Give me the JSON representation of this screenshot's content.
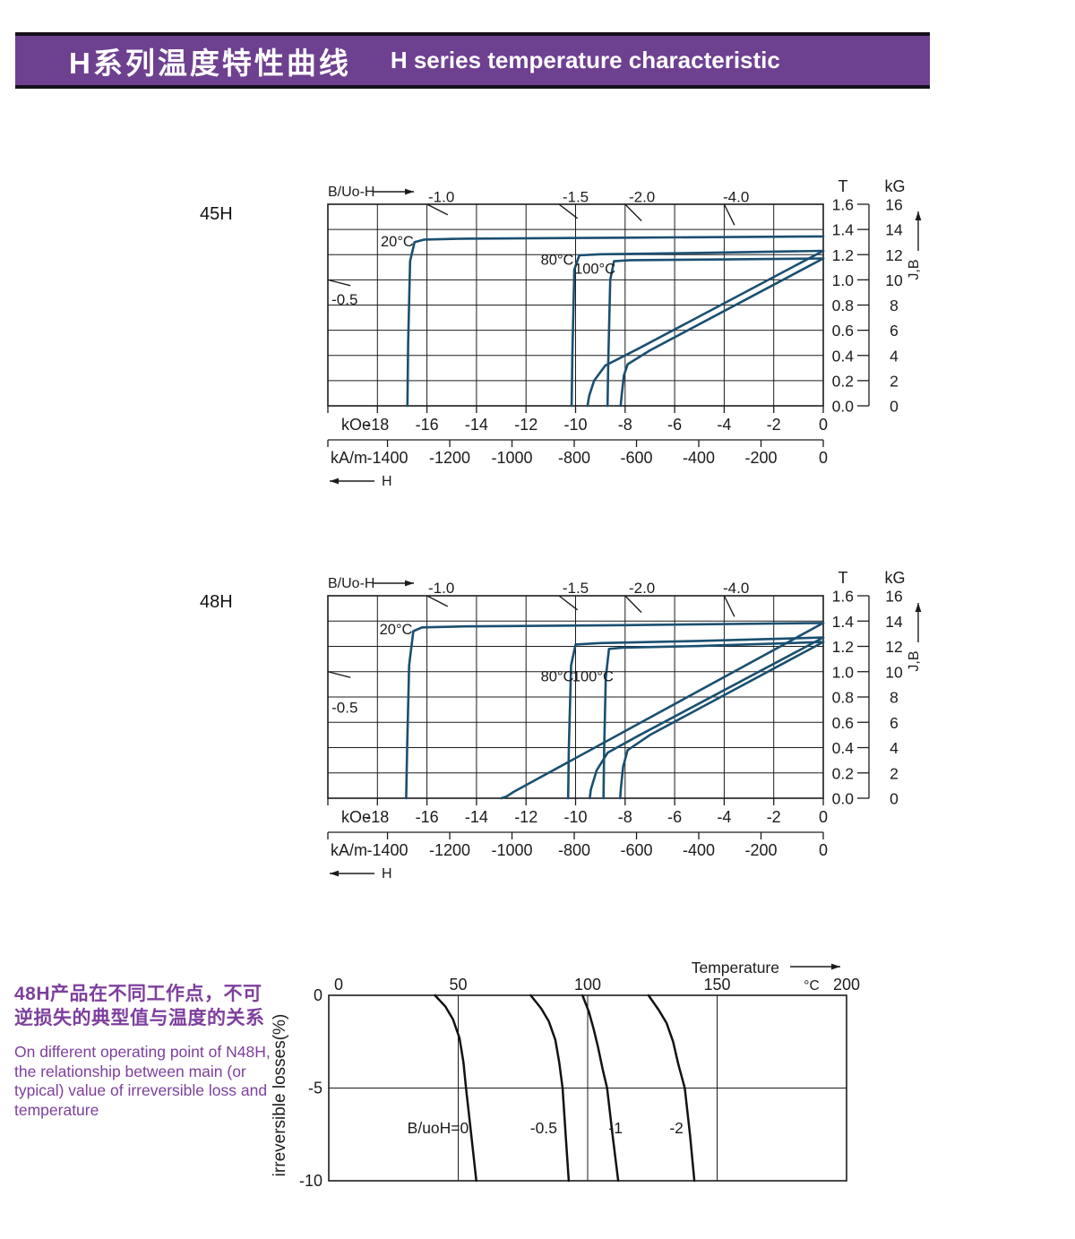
{
  "header": {
    "title_zh": "H系列温度特性曲线",
    "title_en": "H  series temperature characteristic",
    "bg_color": "#6e4090",
    "text_color": "#ffffff"
  },
  "note": {
    "color": "#7d3f9d",
    "zh_lines": [
      "48H产品在不同工作点，不可",
      "逆损失的典型值与温度的关系"
    ],
    "en_lines": [
      "On different operating point of N48H,",
      "the relationship between main (or",
      "typical) value of irreversible loss and",
      "temperature"
    ]
  },
  "chart_data": [
    {
      "id": "demag-45H",
      "type": "line",
      "grade_label": "45H",
      "top_axis_label": "B/Uo-H",
      "curve_color": "#1a4f70",
      "x_axis": {
        "unit_primary": "kOe",
        "range_kOe": [
          -20,
          0
        ],
        "grid_step_kOe": 2,
        "ticks_kOe": [
          -18,
          -16,
          -14,
          -12,
          -10,
          -8,
          -6,
          -4,
          -2,
          0
        ],
        "unit_secondary": "kA/m",
        "ticks_kAm": [
          -1400,
          -1200,
          -1000,
          -800,
          -600,
          -400,
          -200,
          0
        ],
        "arrow_label": "H"
      },
      "y_axis": {
        "unit_left": "T",
        "unit_right": "kG",
        "range_T": [
          0,
          1.6
        ],
        "grid_step_T": 0.2,
        "ticks_T": [
          "1.6",
          "1.4",
          "1.2",
          "1.0",
          "0.8",
          "0.6",
          "0.4",
          "0.2",
          "0.0"
        ],
        "ticks_kG": [
          "16",
          "14",
          "12",
          "10",
          "8",
          "6",
          "4",
          "2",
          "0"
        ],
        "axis_arrow_label": "J,B"
      },
      "load_lines": [
        {
          "label": "-0.5",
          "exit_at": [
            -20,
            1.0
          ],
          "side": "left",
          "label_at": [
            -19.85,
            0.84
          ]
        },
        {
          "label": "-1.0",
          "exit_at": [
            -16,
            1.6
          ],
          "side": "top",
          "label_at": [
            -15.42,
            1.655
          ]
        },
        {
          "label": "-1.5",
          "exit_at": [
            -10.67,
            1.6
          ],
          "side": "top",
          "label_at": [
            -10.0,
            1.655
          ]
        },
        {
          "label": "-2.0",
          "exit_at": [
            -8,
            1.6
          ],
          "side": "top",
          "label_at": [
            -7.32,
            1.655
          ]
        },
        {
          "label": "-4.0",
          "exit_at": [
            -4,
            1.6
          ],
          "side": "top",
          "label_at": [
            -3.52,
            1.655
          ]
        }
      ],
      "series": [
        {
          "name": "J-H 20C",
          "label": "20°C",
          "label_at": [
            -17.2,
            1.3
          ],
          "points": [
            [
              0,
              1.345
            ],
            [
              -8,
              1.335
            ],
            [
              -14.5,
              1.327
            ],
            [
              -16.1,
              1.32
            ],
            [
              -16.5,
              1.3
            ],
            [
              -16.68,
              1.15
            ],
            [
              -16.76,
              0.5
            ],
            [
              -16.79,
              0
            ]
          ]
        },
        {
          "name": "J-H 80C",
          "label": "80°C",
          "label_at": [
            -10.74,
            1.155
          ],
          "points": [
            [
              0,
              1.23
            ],
            [
              -5,
              1.214
            ],
            [
              -9,
              1.203
            ],
            [
              -9.85,
              1.195
            ],
            [
              -10.05,
              1.08
            ],
            [
              -10.13,
              0.4
            ],
            [
              -10.16,
              0
            ]
          ]
        },
        {
          "name": "B-H 80C",
          "points": [
            [
              0,
              1.23
            ],
            [
              -7.5,
              0.45
            ],
            [
              -8.8,
              0.32
            ],
            [
              -9.25,
              0.2
            ],
            [
              -9.45,
              0.08
            ],
            [
              -9.52,
              0
            ]
          ]
        },
        {
          "name": "J-H 100C",
          "label": "100°C",
          "label_at": [
            -9.22,
            1.085
          ],
          "points": [
            [
              0,
              1.17
            ],
            [
              -4,
              1.162
            ],
            [
              -7.8,
              1.156
            ],
            [
              -8.45,
              1.148
            ],
            [
              -8.6,
              1.0
            ],
            [
              -8.68,
              0.35
            ],
            [
              -8.71,
              0
            ]
          ]
        },
        {
          "name": "B-H 100C",
          "points": [
            [
              0,
              1.17
            ],
            [
              -7,
              0.44
            ],
            [
              -7.9,
              0.33
            ],
            [
              -8.05,
              0.24
            ],
            [
              -8.14,
              0.08
            ],
            [
              -8.18,
              0
            ]
          ]
        }
      ]
    },
    {
      "id": "demag-48H",
      "type": "line",
      "grade_label": "48H",
      "top_axis_label": "B/Uo-H",
      "curve_color": "#1a4f70",
      "x_axis": {
        "unit_primary": "kOe",
        "range_kOe": [
          -20,
          0
        ],
        "grid_step_kOe": 2,
        "ticks_kOe": [
          -18,
          -16,
          -14,
          -12,
          -10,
          -8,
          -6,
          -4,
          -2,
          0
        ],
        "unit_secondary": "kA/m",
        "ticks_kAm": [
          -1400,
          -1200,
          -1000,
          -800,
          -600,
          -400,
          -200,
          0
        ],
        "arrow_label": "H"
      },
      "y_axis": {
        "unit_left": "T",
        "unit_right": "kG",
        "range_T": [
          0,
          1.6
        ],
        "grid_step_T": 0.2,
        "ticks_T": [
          "1.6",
          "1.4",
          "1.2",
          "1.0",
          "0.8",
          "0.6",
          "0.4",
          "0.2",
          "0.0"
        ],
        "ticks_kG": [
          "16",
          "14",
          "12",
          "10",
          "8",
          "6",
          "4",
          "2",
          "0"
        ],
        "axis_arrow_label": "J,B"
      },
      "load_lines": [
        {
          "label": "-0.5",
          "exit_at": [
            -20,
            1.0
          ],
          "side": "left",
          "label_at": [
            -19.85,
            0.71
          ]
        },
        {
          "label": "-1.0",
          "exit_at": [
            -16,
            1.6
          ],
          "side": "top",
          "label_at": [
            -15.42,
            1.655
          ]
        },
        {
          "label": "-1.5",
          "exit_at": [
            -10.67,
            1.6
          ],
          "side": "top",
          "label_at": [
            -10.0,
            1.655
          ]
        },
        {
          "label": "-2.0",
          "exit_at": [
            -8,
            1.6
          ],
          "side": "top",
          "label_at": [
            -7.32,
            1.655
          ]
        },
        {
          "label": "-4.0",
          "exit_at": [
            -4,
            1.6
          ],
          "side": "top",
          "label_at": [
            -3.52,
            1.655
          ]
        }
      ],
      "series": [
        {
          "name": "J-H 20C",
          "label": "20°C",
          "label_at": [
            -17.25,
            1.33
          ],
          "points": [
            [
              0,
              1.385
            ],
            [
              -8,
              1.368
            ],
            [
              -14.5,
              1.358
            ],
            [
              -16.2,
              1.35
            ],
            [
              -16.55,
              1.32
            ],
            [
              -16.72,
              1.05
            ],
            [
              -16.8,
              0.4
            ],
            [
              -16.84,
              0
            ]
          ]
        },
        {
          "name": "B-H 20C",
          "points": [
            [
              0,
              1.385
            ],
            [
              -12.5,
              0.05
            ],
            [
              -12.8,
              0.012
            ],
            [
              -13.0,
              0
            ]
          ]
        },
        {
          "name": "J-H 80C",
          "label": "80°C",
          "label_at": [
            -10.74,
            0.96
          ],
          "points": [
            [
              0,
              1.27
            ],
            [
              -5,
              1.243
            ],
            [
              -9,
              1.226
            ],
            [
              -10.0,
              1.215
            ],
            [
              -10.18,
              1.05
            ],
            [
              -10.27,
              0.4
            ],
            [
              -10.3,
              0
            ]
          ]
        },
        {
          "name": "B-H 80C",
          "points": [
            [
              0,
              1.27
            ],
            [
              -7.5,
              0.49
            ],
            [
              -8.7,
              0.36
            ],
            [
              -9.15,
              0.22
            ],
            [
              -9.38,
              0.07
            ],
            [
              -9.43,
              0
            ]
          ]
        },
        {
          "name": "J-H 100C",
          "label": "100°C",
          "label_at": [
            -9.3,
            0.96
          ],
          "points": [
            [
              0,
              1.235
            ],
            [
              -5,
              1.203
            ],
            [
              -8.1,
              1.19
            ],
            [
              -8.65,
              1.18
            ],
            [
              -8.78,
              0.95
            ],
            [
              -8.85,
              0.35
            ],
            [
              -8.87,
              0
            ]
          ]
        },
        {
          "name": "B-H 100C",
          "points": [
            [
              0,
              1.235
            ],
            [
              -7,
              0.5
            ],
            [
              -7.9,
              0.38
            ],
            [
              -8.08,
              0.25
            ],
            [
              -8.17,
              0.08
            ],
            [
              -8.2,
              0
            ]
          ]
        }
      ]
    },
    {
      "id": "irreversible-loss-48H",
      "type": "line",
      "line_color": "#121212",
      "x_axis": {
        "label": "Temperature",
        "unit": "°C",
        "range": [
          0,
          200
        ],
        "ticks": [
          0,
          50,
          100,
          150,
          200
        ],
        "grid_ticks": [
          50,
          100,
          150
        ]
      },
      "y_axis": {
        "label": "irreversible  losses(%)",
        "range": [
          -10,
          0
        ],
        "ticks": [
          "0",
          "-5",
          "-10"
        ],
        "grid_ticks": [
          -5
        ]
      },
      "series": [
        {
          "name": "B/uoH=0",
          "label": "B/uoH=0",
          "label_at": [
            42.2,
            -7.15
          ],
          "points": [
            [
              41,
              0
            ],
            [
              45,
              -0.6
            ],
            [
              48,
              -1.3
            ],
            [
              50.5,
              -2.3
            ],
            [
              52,
              -3.6
            ],
            [
              53,
              -5
            ],
            [
              55,
              -7.5
            ],
            [
              57,
              -10
            ]
          ]
        },
        {
          "name": "B/uoH=-0.5",
          "label": "-0.5",
          "label_at": [
            83.0,
            -7.15
          ],
          "points": [
            [
              78,
              0
            ],
            [
              82,
              -0.7
            ],
            [
              85,
              -1.4
            ],
            [
              87.5,
              -2.4
            ],
            [
              89,
              -3.6
            ],
            [
              90.3,
              -5
            ],
            [
              91.5,
              -7.5
            ],
            [
              92.7,
              -10
            ]
          ]
        },
        {
          "name": "B/uoH=-1",
          "label": "-1",
          "label_at": [
            110.8,
            -7.15
          ],
          "points": [
            [
              98,
              0
            ],
            [
              100.5,
              -0.9
            ],
            [
              102.3,
              -1.8
            ],
            [
              104,
              -2.8
            ],
            [
              105.8,
              -4
            ],
            [
              107.5,
              -5
            ],
            [
              109.6,
              -7.5
            ],
            [
              111.8,
              -10
            ]
          ]
        },
        {
          "name": "B/uoH=-2",
          "label": "-2",
          "label_at": [
            134.3,
            -7.15
          ],
          "points": [
            [
              123.5,
              0
            ],
            [
              127.5,
              -0.8
            ],
            [
              130.5,
              -1.5
            ],
            [
              133,
              -2.5
            ],
            [
              135,
              -3.7
            ],
            [
              137.5,
              -5
            ],
            [
              139.5,
              -7.5
            ],
            [
              141.2,
              -10
            ]
          ]
        }
      ]
    }
  ]
}
